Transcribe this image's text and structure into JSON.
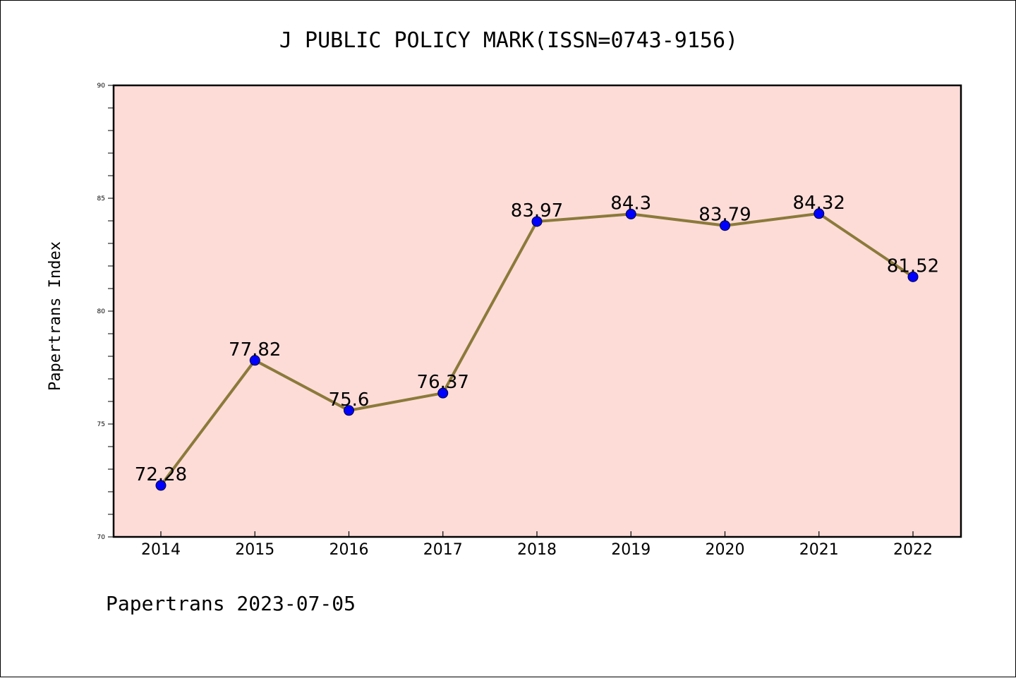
{
  "chart_data": {
    "type": "line",
    "title": "J PUBLIC POLICY MARK(ISSN=0743-9156)",
    "ylabel": "Papertrans Index",
    "xlabel": "",
    "footer": "Papertrans 2023-07-05",
    "categories": [
      "2014",
      "2015",
      "2016",
      "2017",
      "2018",
      "2019",
      "2020",
      "2021",
      "2022"
    ],
    "values": [
      72.28,
      77.82,
      75.6,
      76.37,
      83.97,
      84.3,
      83.79,
      84.32,
      81.52
    ],
    "data_labels": [
      "72.28",
      "77.82",
      "75.6",
      "76.37",
      "83.97",
      "84.3",
      "83.79",
      "84.32",
      "81.52"
    ],
    "ylim": [
      70,
      90
    ],
    "yticks": [
      70,
      75,
      80,
      85,
      90
    ],
    "ytick_labels": [
      "70",
      "75",
      "80",
      "85",
      "90"
    ],
    "grid": false,
    "colors": {
      "plot_background": "#fddcd8",
      "line": "#8b7a3a",
      "marker": "#0000ff"
    }
  }
}
